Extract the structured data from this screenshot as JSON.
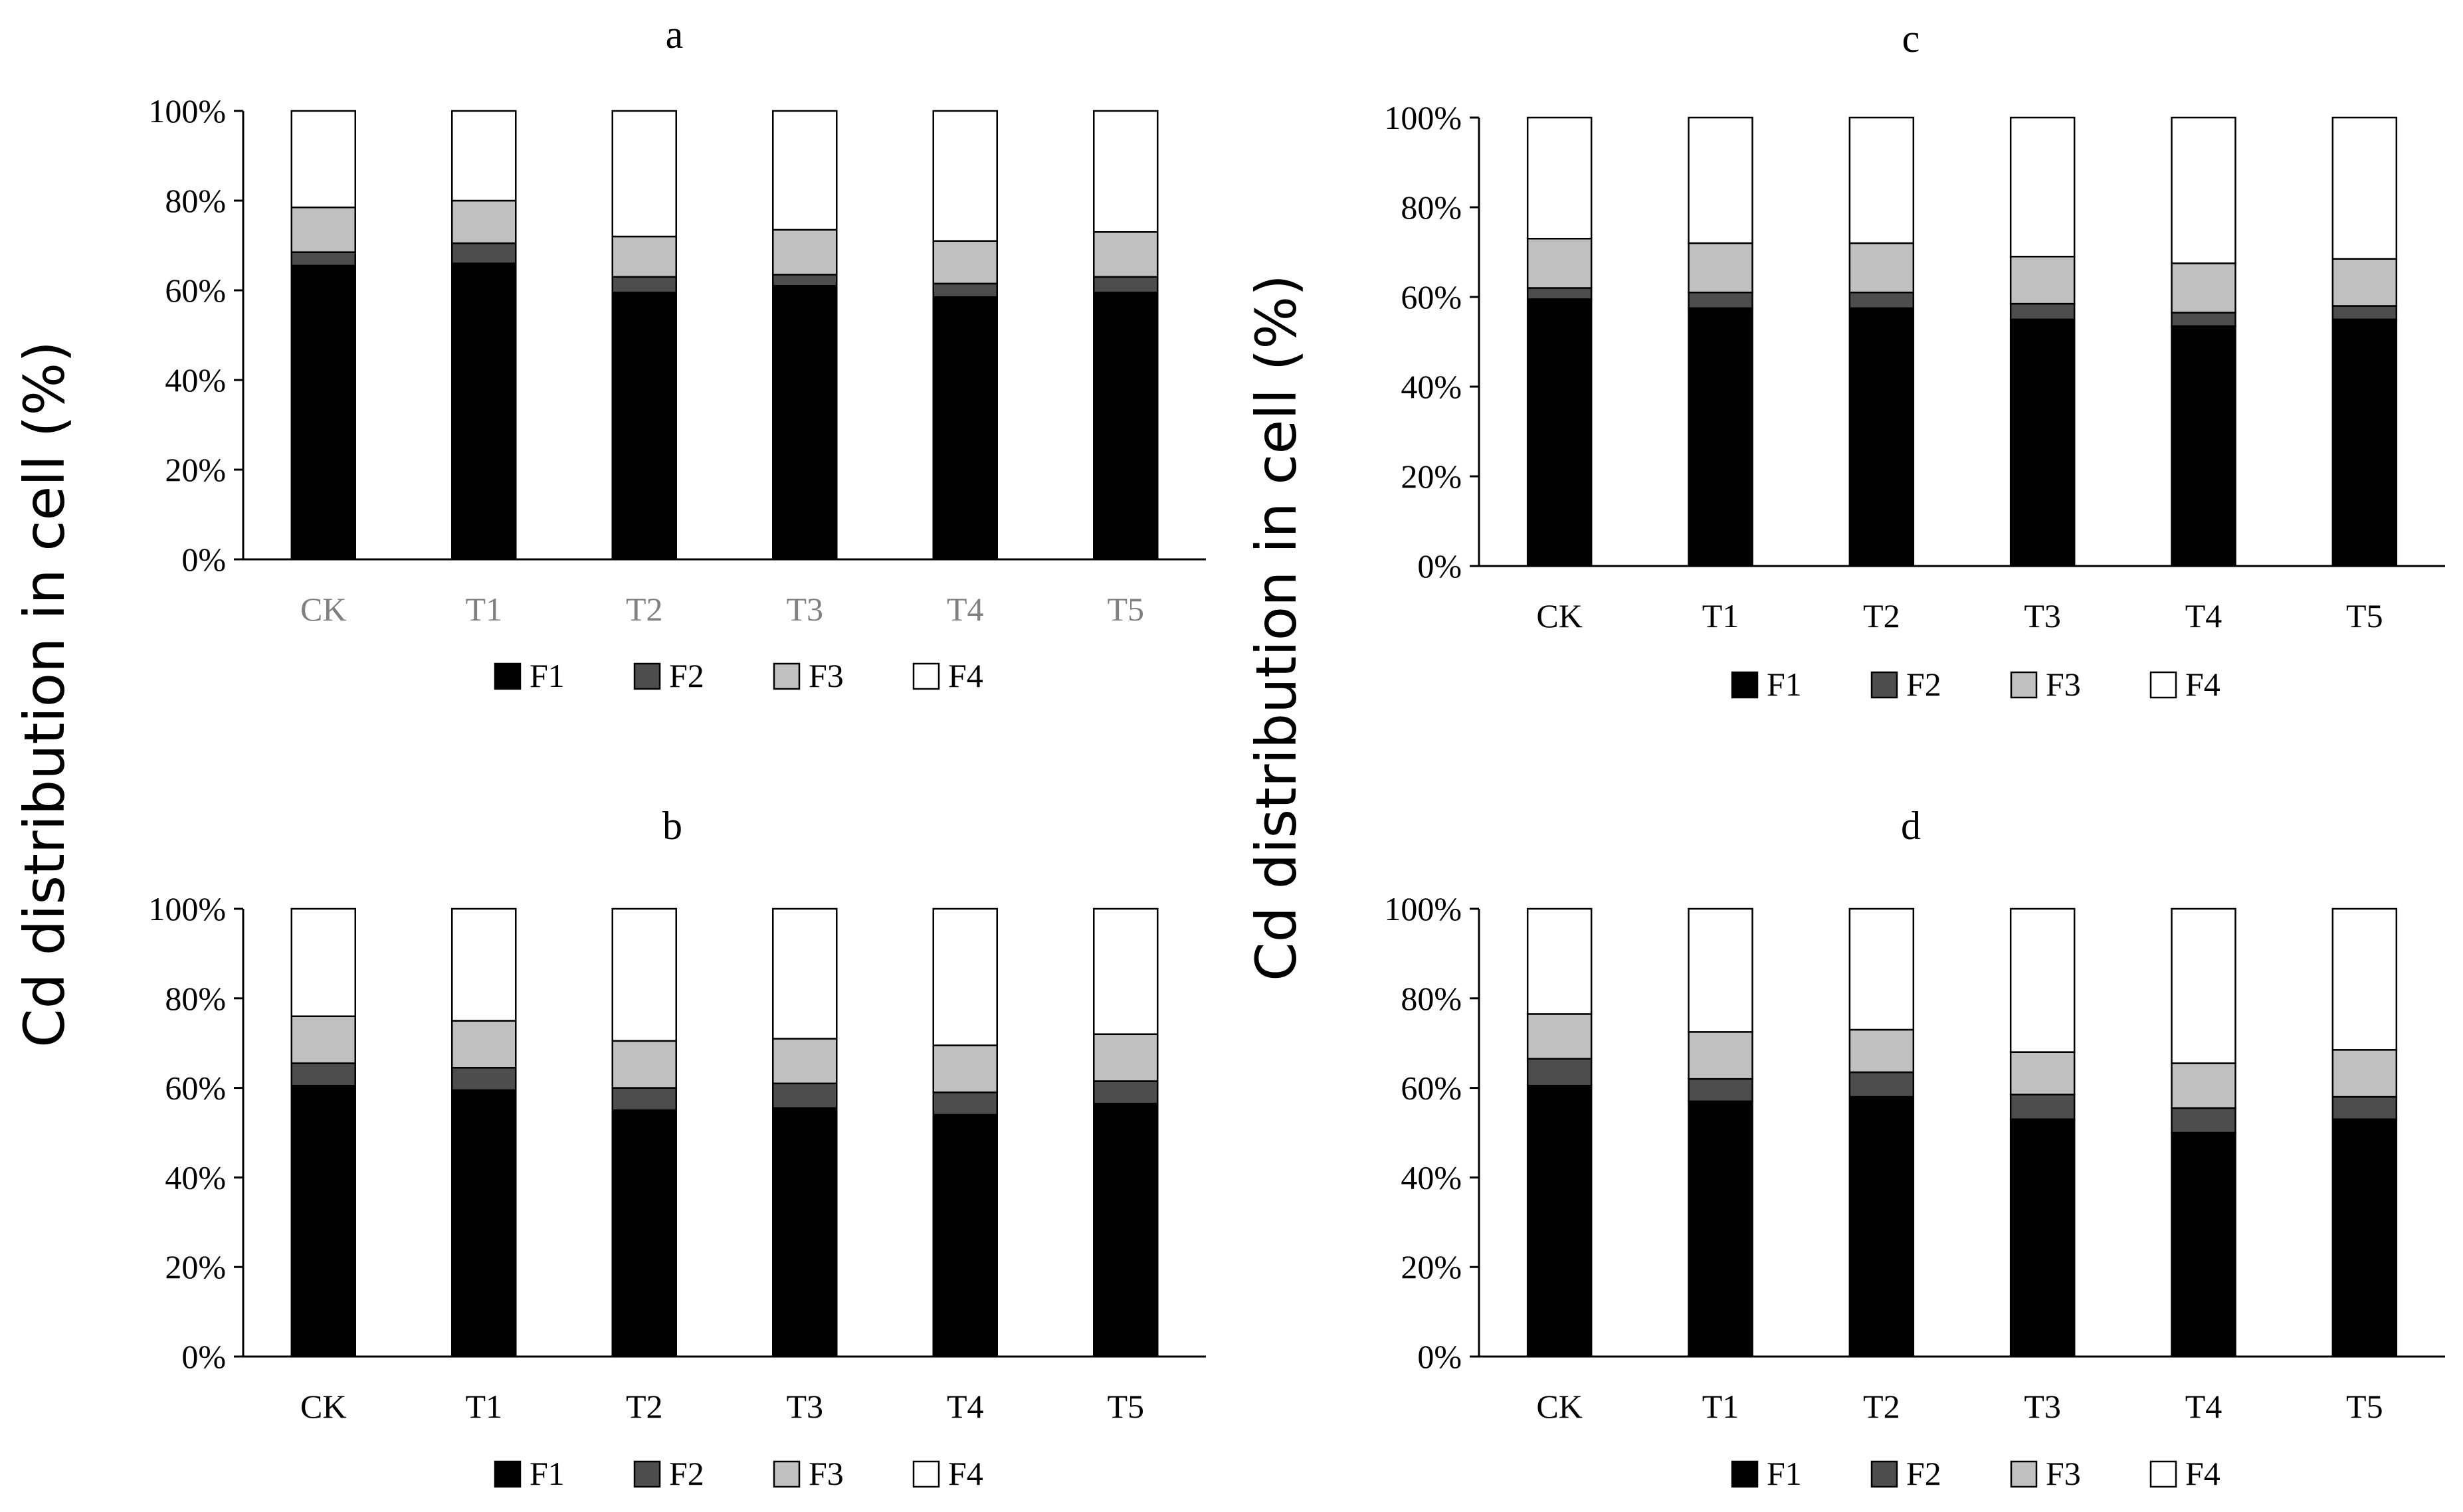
{
  "y_axis_label": "Cd distribution in cell (%)",
  "y_axis_label_right": "Cd distribution in cell  (%)",
  "colors": {
    "F1": "#000000",
    "F2": "#4d4d4d",
    "F3": "#c0c0c0",
    "F4": "#ffffff",
    "tick_text_gray": "#808080",
    "tick_text": "#000000"
  },
  "chart_data": [
    {
      "type": "bar",
      "stacked": "percent",
      "title": "a",
      "categories": [
        "CK",
        "T1",
        "T2",
        "T3",
        "T4",
        "T5"
      ],
      "ylim": [
        0,
        100
      ],
      "yticks": [
        "0%",
        "20%",
        "40%",
        "60%",
        "80%",
        "100%"
      ],
      "legend_position": "bottom",
      "series": [
        {
          "name": "F1",
          "values": [
            65.5,
            66,
            59.5,
            61,
            58.5,
            59.5
          ]
        },
        {
          "name": "F2",
          "values": [
            3,
            4.5,
            3.5,
            2.5,
            3,
            3.5
          ]
        },
        {
          "name": "F3",
          "values": [
            10,
            9.5,
            9,
            10,
            9.5,
            10
          ]
        },
        {
          "name": "F4",
          "values": [
            21.5,
            20,
            28,
            26.5,
            29,
            27
          ]
        }
      ]
    },
    {
      "type": "bar",
      "stacked": "percent",
      "title": "c",
      "categories": [
        "CK",
        "T1",
        "T2",
        "T3",
        "T4",
        "T5"
      ],
      "ylim": [
        0,
        100
      ],
      "yticks": [
        "0%",
        "20%",
        "40%",
        "60%",
        "80%",
        "100%"
      ],
      "legend_position": "bottom",
      "series": [
        {
          "name": "F1",
          "values": [
            59.5,
            57.5,
            57.5,
            55,
            53.5,
            55
          ]
        },
        {
          "name": "F2",
          "values": [
            2.5,
            3.5,
            3.5,
            3.5,
            3,
            3
          ]
        },
        {
          "name": "F3",
          "values": [
            11,
            11,
            11,
            10.5,
            11,
            10.5
          ]
        },
        {
          "name": "F4",
          "values": [
            27,
            28,
            28,
            31,
            32.5,
            31.5
          ]
        }
      ]
    },
    {
      "type": "bar",
      "stacked": "percent",
      "title": "b",
      "categories": [
        "CK",
        "T1",
        "T2",
        "T3",
        "T4",
        "T5"
      ],
      "ylim": [
        0,
        100
      ],
      "yticks": [
        "0%",
        "20%",
        "40%",
        "60%",
        "80%",
        "100%"
      ],
      "legend_position": "bottom",
      "series": [
        {
          "name": "F1",
          "values": [
            60.5,
            59.5,
            55,
            55.5,
            54,
            56.5
          ]
        },
        {
          "name": "F2",
          "values": [
            5,
            5,
            5,
            5.5,
            5,
            5
          ]
        },
        {
          "name": "F3",
          "values": [
            10.5,
            10.5,
            10.5,
            10,
            10.5,
            10.5
          ]
        },
        {
          "name": "F4",
          "values": [
            24,
            25,
            29.5,
            29,
            30.5,
            28
          ]
        }
      ]
    },
    {
      "type": "bar",
      "stacked": "percent",
      "title": "d",
      "categories": [
        "CK",
        "T1",
        "T2",
        "T3",
        "T4",
        "T5"
      ],
      "ylim": [
        0,
        100
      ],
      "yticks": [
        "0%",
        "20%",
        "40%",
        "60%",
        "80%",
        "100%"
      ],
      "legend_position": "bottom",
      "series": [
        {
          "name": "F1",
          "values": [
            60.5,
            57,
            58,
            53,
            50,
            53
          ]
        },
        {
          "name": "F2",
          "values": [
            6,
            5,
            5.5,
            5.5,
            5.5,
            5
          ]
        },
        {
          "name": "F3",
          "values": [
            10,
            10.5,
            9.5,
            9.5,
            10,
            10.5
          ]
        },
        {
          "name": "F4",
          "values": [
            23.5,
            27.5,
            27,
            32,
            34.5,
            31.5
          ]
        }
      ]
    }
  ]
}
